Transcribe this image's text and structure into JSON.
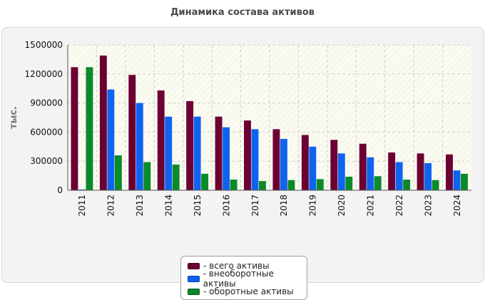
{
  "page": {
    "title": "Динамика состава активов"
  },
  "chart_data": {
    "type": "bar",
    "title": "Динамика состава активов",
    "ylabel": "тыс.",
    "xlabel": "",
    "ylim": [
      0,
      1500000
    ],
    "yticks": [
      0,
      300000,
      600000,
      900000,
      1200000,
      1500000
    ],
    "grid": true,
    "legend_position": "bottom",
    "categories": [
      "2011",
      "2012",
      "2013",
      "2014",
      "2015",
      "2016",
      "2017",
      "2018",
      "2019",
      "2020",
      "2021",
      "2022",
      "2023",
      "2024"
    ],
    "series": [
      {
        "name": "- всего активы",
        "color": "#6b0033",
        "values": [
          1270000,
          1390000,
          1190000,
          1030000,
          920000,
          760000,
          720000,
          630000,
          570000,
          520000,
          480000,
          390000,
          380000,
          370000
        ]
      },
      {
        "name": "- внеоборотные активы",
        "color": "#0f63f0",
        "values": [
          8000,
          1040000,
          900000,
          760000,
          760000,
          650000,
          630000,
          530000,
          450000,
          380000,
          340000,
          290000,
          280000,
          205000
        ]
      },
      {
        "name": "- оборотные активы",
        "color": "#0a8a2a",
        "values": [
          1270000,
          360000,
          290000,
          265000,
          170000,
          110000,
          95000,
          105000,
          115000,
          140000,
          145000,
          110000,
          105000,
          170000
        ]
      }
    ]
  }
}
